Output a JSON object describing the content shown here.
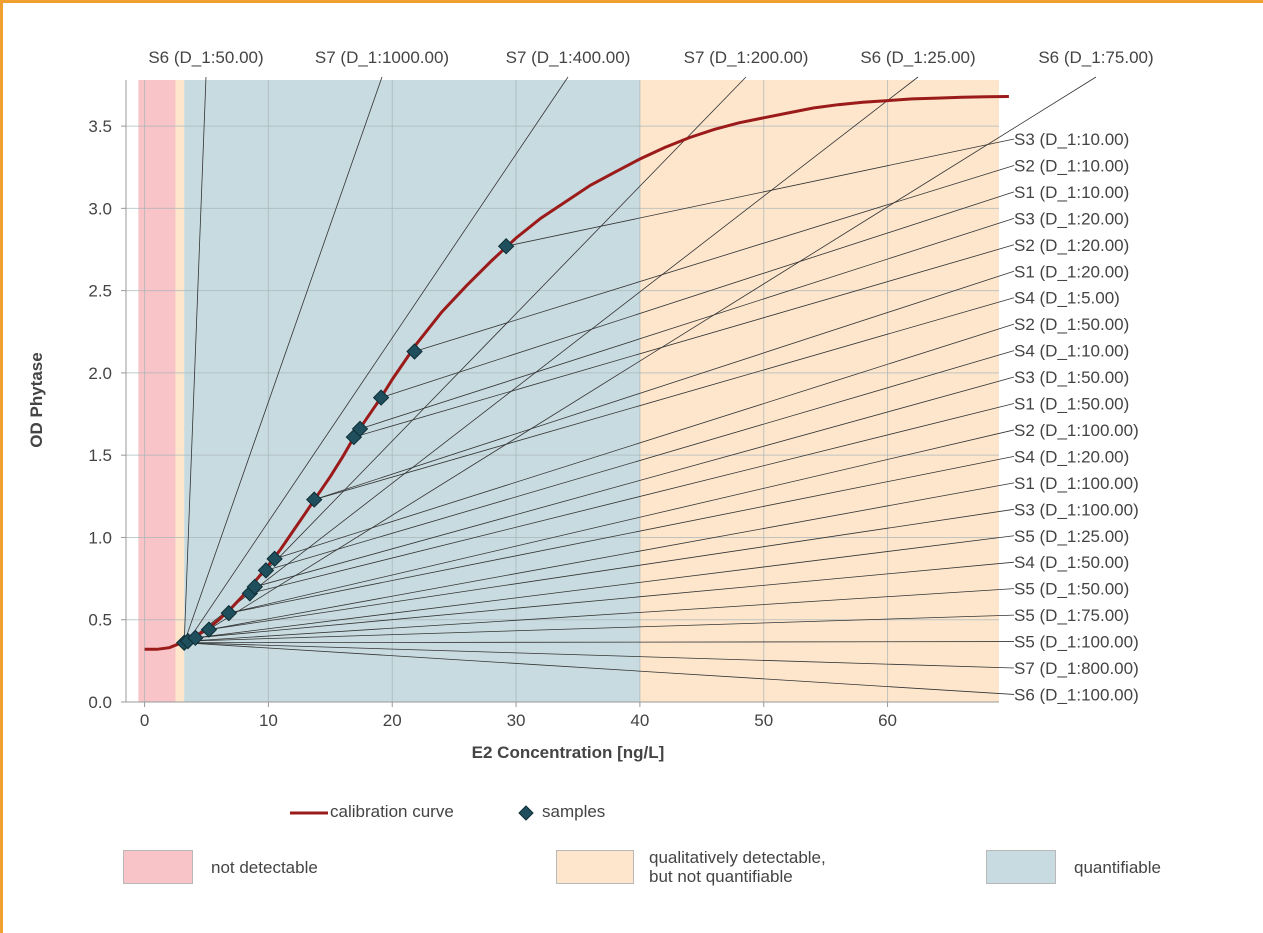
{
  "chart_data": {
    "type": "line",
    "xlabel": "E2 Concentration [ng/L]",
    "ylabel": "OD Phytase",
    "xlim": [
      -1.5,
      69
    ],
    "ylim": [
      0,
      3.78
    ],
    "x_ticks": [
      "0",
      "10",
      "20",
      "30",
      "40",
      "50",
      "60"
    ],
    "y_ticks": [
      "0.0",
      "0.5",
      "1.0",
      "1.5",
      "2.0",
      "2.5",
      "3.0",
      "3.5"
    ],
    "grid": true,
    "regions": [
      {
        "name": "not detectable",
        "x_from": -0.5,
        "x_to": 2.5,
        "color": "#f8c4c8"
      },
      {
        "name": "qualitatively detectable, but not quantifiable",
        "x_from": 2.5,
        "x_to": 3.2,
        "color": "#fde6cc"
      },
      {
        "name": "quantifiable",
        "x_from": 3.2,
        "x_to": 40,
        "color": "#c8dbe0"
      },
      {
        "name": "qualitatively detectable, but not quantifiable",
        "x_from": 40,
        "x_to": 69,
        "color": "#fde6cc"
      }
    ],
    "series": [
      {
        "name": "calibration curve",
        "color": "#9b1b1b",
        "x": [
          0,
          1,
          2,
          2.5,
          3,
          3.5,
          4,
          5,
          6,
          7,
          8,
          9,
          10,
          11,
          12,
          13,
          14,
          15,
          16,
          17,
          18,
          19,
          20,
          22,
          24,
          26,
          28,
          30,
          32,
          34,
          36,
          38,
          40,
          42,
          44,
          46,
          48,
          50,
          52,
          54,
          56,
          58,
          60,
          62,
          64,
          66,
          68,
          69.8
        ],
        "y": [
          0.32,
          0.32,
          0.33,
          0.345,
          0.36,
          0.375,
          0.395,
          0.44,
          0.5,
          0.57,
          0.65,
          0.74,
          0.83,
          0.93,
          1.04,
          1.15,
          1.26,
          1.37,
          1.49,
          1.62,
          1.73,
          1.84,
          1.96,
          2.18,
          2.37,
          2.53,
          2.68,
          2.82,
          2.94,
          3.04,
          3.14,
          3.22,
          3.3,
          3.37,
          3.43,
          3.48,
          3.52,
          3.55,
          3.58,
          3.61,
          3.63,
          3.645,
          3.655,
          3.665,
          3.67,
          3.675,
          3.678,
          3.68
        ]
      },
      {
        "name": "samples",
        "color": "#1f4e5c",
        "points": [
          {
            "x": 3.2,
            "y": 0.36
          },
          {
            "x": 3.5,
            "y": 0.37
          },
          {
            "x": 4.1,
            "y": 0.39
          },
          {
            "x": 5.2,
            "y": 0.44
          },
          {
            "x": 6.8,
            "y": 0.54
          },
          {
            "x": 8.5,
            "y": 0.66
          },
          {
            "x": 8.9,
            "y": 0.7
          },
          {
            "x": 9.8,
            "y": 0.8
          },
          {
            "x": 10.5,
            "y": 0.87
          },
          {
            "x": 13.7,
            "y": 1.23
          },
          {
            "x": 16.9,
            "y": 1.61
          },
          {
            "x": 17.4,
            "y": 1.66
          },
          {
            "x": 19.1,
            "y": 1.85
          },
          {
            "x": 21.8,
            "y": 2.13
          },
          {
            "x": 29.2,
            "y": 2.77
          }
        ]
      }
    ],
    "annotations": {
      "top": [
        {
          "label": "S6 (D_1:50.00)",
          "from": {
            "x": 3.2,
            "y": 0.36
          }
        },
        {
          "label": "S7 (D_1:1000.00)",
          "from": {
            "x": 3.2,
            "y": 0.36
          }
        },
        {
          "label": "S7 (D_1:400.00)",
          "from": {
            "x": 3.5,
            "y": 0.37
          }
        },
        {
          "label": "S7 (D_1:200.00)",
          "from": {
            "x": 5.2,
            "y": 0.44
          }
        },
        {
          "label": "S6 (D_1:25.00)",
          "from": {
            "x": 3.5,
            "y": 0.37
          }
        },
        {
          "label": "S6 (D_1:75.00)",
          "from": {
            "x": 4.1,
            "y": 0.39
          }
        }
      ],
      "right": [
        {
          "label": "S3 (D_1:10.00)",
          "from": {
            "x": 29.2,
            "y": 2.77
          }
        },
        {
          "label": "S2 (D_1:10.00)",
          "from": {
            "x": 21.8,
            "y": 2.13
          }
        },
        {
          "label": "S1 (D_1:10.00)",
          "from": {
            "x": 19.1,
            "y": 1.85
          }
        },
        {
          "label": "S3 (D_1:20.00)",
          "from": {
            "x": 17.4,
            "y": 1.66
          }
        },
        {
          "label": "S2 (D_1:20.00)",
          "from": {
            "x": 16.9,
            "y": 1.61
          }
        },
        {
          "label": "S1 (D_1:20.00)",
          "from": {
            "x": 13.7,
            "y": 1.23
          }
        },
        {
          "label": "S4 (D_1:5.00)",
          "from": {
            "x": 13.7,
            "y": 1.23
          }
        },
        {
          "label": "S2 (D_1:50.00)",
          "from": {
            "x": 10.5,
            "y": 0.87
          }
        },
        {
          "label": "S4 (D_1:10.00)",
          "from": {
            "x": 9.8,
            "y": 0.8
          }
        },
        {
          "label": "S3 (D_1:50.00)",
          "from": {
            "x": 8.9,
            "y": 0.7
          }
        },
        {
          "label": "S1 (D_1:50.00)",
          "from": {
            "x": 8.5,
            "y": 0.66
          }
        },
        {
          "label": "S2 (D_1:100.00)",
          "from": {
            "x": 6.8,
            "y": 0.54
          }
        },
        {
          "label": "S4 (D_1:20.00)",
          "from": {
            "x": 6.8,
            "y": 0.54
          }
        },
        {
          "label": "S1 (D_1:100.00)",
          "from": {
            "x": 5.2,
            "y": 0.44
          }
        },
        {
          "label": "S3 (D_1:100.00)",
          "from": {
            "x": 5.2,
            "y": 0.44
          }
        },
        {
          "label": "S5 (D_1:25.00)",
          "from": {
            "x": 4.1,
            "y": 0.39
          }
        },
        {
          "label": "S4 (D_1:50.00)",
          "from": {
            "x": 4.1,
            "y": 0.39
          }
        },
        {
          "label": "S5 (D_1:50.00)",
          "from": {
            "x": 3.5,
            "y": 0.37
          }
        },
        {
          "label": "S5 (D_1:75.00)",
          "from": {
            "x": 3.5,
            "y": 0.37
          }
        },
        {
          "label": "S5 (D_1:100.00)",
          "from": {
            "x": 3.2,
            "y": 0.36
          }
        },
        {
          "label": "S7 (D_1:800.00)",
          "from": {
            "x": 3.2,
            "y": 0.36
          }
        },
        {
          "label": "S6 (D_1:100.00)",
          "from": {
            "x": 3.2,
            "y": 0.36
          }
        }
      ]
    },
    "legend": {
      "placement": "bottom",
      "items": [
        {
          "label": "calibration curve",
          "marker": "line",
          "color": "#9b1b1b"
        },
        {
          "label": "samples",
          "marker": "diamond",
          "color": "#1f4e5c"
        }
      ]
    }
  },
  "region_legend": [
    {
      "label": "not detectable",
      "color": "#f8c4c8"
    },
    {
      "label_line1": "qualitatively detectable,",
      "label_line2": "but not quantifiable",
      "color": "#fde6cc"
    },
    {
      "label": "quantifiable",
      "color": "#c8dbe0"
    }
  ]
}
